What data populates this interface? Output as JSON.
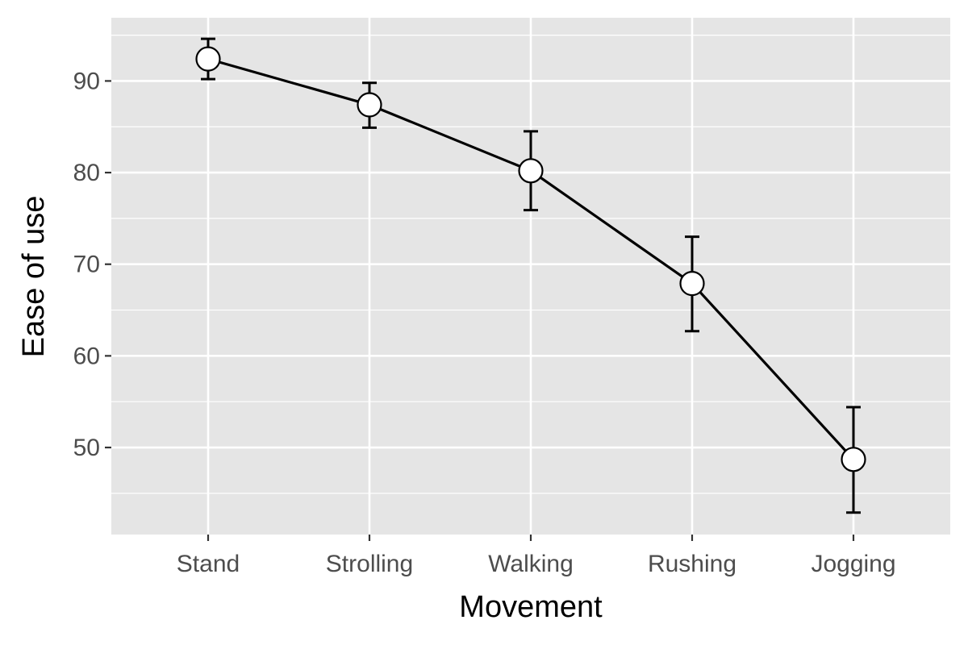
{
  "chart_data": {
    "type": "line",
    "xlabel": "Movement",
    "ylabel": "Ease of use",
    "categories": [
      "Stand",
      "Strolling",
      "Walking",
      "Rushing",
      "Jogging"
    ],
    "series": [
      {
        "values": [
          92.4,
          87.4,
          80.2,
          67.9,
          48.7
        ],
        "error_low": [
          90.2,
          84.9,
          75.9,
          62.7,
          42.9
        ],
        "error_high": [
          94.6,
          89.8,
          84.5,
          73.0,
          54.4
        ]
      }
    ],
    "ylim": [
      40.5,
      96.9
    ],
    "yticks": [
      50,
      60,
      70,
      80,
      90
    ],
    "grid": true,
    "legend": "none",
    "colors": {
      "panel_background": "#e5e5e5",
      "grid": "#ffffff",
      "line": "#000000",
      "marker_fill": "#ffffff",
      "marker_stroke": "#000000"
    }
  }
}
